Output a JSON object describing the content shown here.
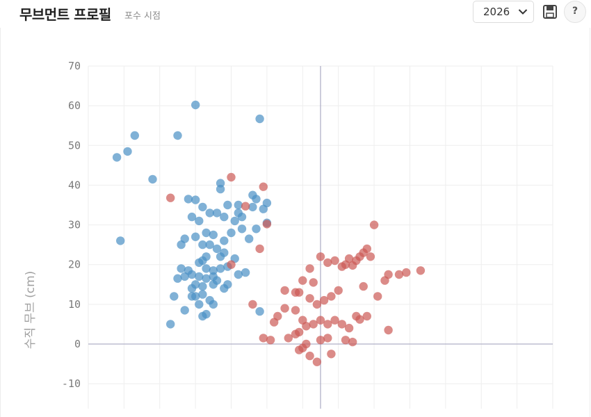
{
  "header": {
    "title": "무브먼트 프로필",
    "subtitle": "포수 시점",
    "year": "2026"
  },
  "icons": {
    "save": "floppy-disk-icon",
    "help": "question-mark-icon",
    "dropdown": "chevron-down-icon"
  },
  "help_label": "?",
  "chart_data": {
    "type": "scatter",
    "ylabel": "수직 무브 (cm)",
    "ylim": [
      -10,
      70
    ],
    "yticks": [
      70,
      60,
      50,
      40,
      30,
      20,
      10,
      0,
      -10
    ],
    "xlim": [
      -65,
      65
    ],
    "grid": true,
    "series": [
      {
        "color": "#4a90c4",
        "points": [
          [
            -57,
            47
          ],
          [
            -54,
            48.5
          ],
          [
            -52,
            52.5
          ],
          [
            -47,
            41.5
          ],
          [
            -56,
            26
          ],
          [
            -42,
            5
          ],
          [
            -40,
            52.5
          ],
          [
            -35,
            60.2
          ],
          [
            -17,
            56.7
          ],
          [
            -37,
            36.5
          ],
          [
            -35,
            36.3
          ],
          [
            -28,
            40.5
          ],
          [
            -28,
            39
          ],
          [
            -26,
            35
          ],
          [
            -23,
            35
          ],
          [
            -19,
            37.5
          ],
          [
            -18,
            36.5
          ],
          [
            -15,
            35.5
          ],
          [
            -33,
            34.5
          ],
          [
            -31,
            33
          ],
          [
            -29,
            33
          ],
          [
            -27,
            32
          ],
          [
            -24,
            31
          ],
          [
            -22,
            32
          ],
          [
            -19,
            34.5
          ],
          [
            -16,
            34
          ],
          [
            -36,
            32
          ],
          [
            -34,
            31
          ],
          [
            -38,
            26.5
          ],
          [
            -35,
            27
          ],
          [
            -32,
            28
          ],
          [
            -30,
            27.5
          ],
          [
            -27,
            26
          ],
          [
            -25,
            28
          ],
          [
            -22,
            29
          ],
          [
            -20,
            26.5
          ],
          [
            -18,
            29
          ],
          [
            -39,
            25
          ],
          [
            -33,
            25
          ],
          [
            -31,
            25
          ],
          [
            -29,
            24
          ],
          [
            -27,
            23
          ],
          [
            -28,
            22
          ],
          [
            -32,
            22
          ],
          [
            -33,
            21
          ],
          [
            -34,
            20.5
          ],
          [
            -32,
            19
          ],
          [
            -30,
            18.5
          ],
          [
            -28,
            19
          ],
          [
            -26,
            19.5
          ],
          [
            -24,
            21.5
          ],
          [
            -23,
            17.5
          ],
          [
            -30,
            17
          ],
          [
            -32,
            16.5
          ],
          [
            -34,
            17
          ],
          [
            -36,
            17.5
          ],
          [
            -38,
            17
          ],
          [
            -39,
            19
          ],
          [
            -37,
            18.5
          ],
          [
            -40,
            16.5
          ],
          [
            -35,
            15
          ],
          [
            -33,
            14.5
          ],
          [
            -30,
            15
          ],
          [
            -29,
            16
          ],
          [
            -27,
            14
          ],
          [
            -26,
            15
          ],
          [
            -36,
            14
          ],
          [
            -35,
            12
          ],
          [
            -33,
            12.5
          ],
          [
            -31,
            11
          ],
          [
            -30,
            10
          ],
          [
            -34,
            10
          ],
          [
            -36,
            12
          ],
          [
            -38,
            8.5
          ],
          [
            -33,
            7
          ],
          [
            -32,
            7.5
          ],
          [
            -41,
            12
          ],
          [
            -17,
            8.2
          ],
          [
            -15,
            30.5
          ],
          [
            -21,
            18
          ],
          [
            -23,
            33
          ]
        ]
      },
      {
        "color": "#cc5a55",
        "points": [
          [
            -42,
            36.8
          ],
          [
            -25,
            42
          ],
          [
            -21,
            34.7
          ],
          [
            -16,
            39.6
          ],
          [
            -15,
            30.2
          ],
          [
            -17,
            24
          ],
          [
            -25,
            20
          ],
          [
            -19,
            10
          ],
          [
            -10,
            13.5
          ],
          [
            -7,
            8.5
          ],
          [
            -6,
            13
          ],
          [
            -5,
            6
          ],
          [
            -10,
            9
          ],
          [
            -12,
            7
          ],
          [
            -13,
            5.5
          ],
          [
            -16,
            1.5
          ],
          [
            -14,
            1
          ],
          [
            -9,
            1.5
          ],
          [
            -7,
            2.5
          ],
          [
            -6,
            3
          ],
          [
            -4,
            4.5
          ],
          [
            -2,
            5
          ],
          [
            0,
            6
          ],
          [
            2,
            5
          ],
          [
            4,
            6
          ],
          [
            6,
            5
          ],
          [
            8,
            4
          ],
          [
            10,
            7
          ],
          [
            -3,
            11.5
          ],
          [
            -1,
            10
          ],
          [
            1,
            11
          ],
          [
            3,
            12
          ],
          [
            5,
            13.5
          ],
          [
            -2,
            15.5
          ],
          [
            0,
            22
          ],
          [
            2,
            20.5
          ],
          [
            4,
            21
          ],
          [
            6,
            19.5
          ],
          [
            7,
            20
          ],
          [
            8,
            21.5
          ],
          [
            9,
            19.8
          ],
          [
            10,
            21
          ],
          [
            11,
            22
          ],
          [
            12,
            23
          ],
          [
            13,
            24
          ],
          [
            14,
            22
          ],
          [
            12,
            14.5
          ],
          [
            15,
            30
          ],
          [
            18,
            16
          ],
          [
            19,
            17.5
          ],
          [
            22,
            17.5
          ],
          [
            24,
            18
          ],
          [
            28,
            18.5
          ],
          [
            16,
            12
          ],
          [
            13,
            7
          ],
          [
            11,
            6.2
          ],
          [
            -1,
            -4.5
          ],
          [
            -5,
            -1
          ],
          [
            -3,
            -3
          ],
          [
            0,
            1
          ],
          [
            2,
            1.5
          ],
          [
            3,
            -2.5
          ],
          [
            7,
            1
          ],
          [
            9,
            0.5
          ],
          [
            -4,
            0
          ],
          [
            -6,
            -1.5
          ],
          [
            19,
            3.5
          ],
          [
            -5,
            16
          ],
          [
            -7,
            13
          ],
          [
            -3,
            19
          ]
        ]
      }
    ]
  }
}
